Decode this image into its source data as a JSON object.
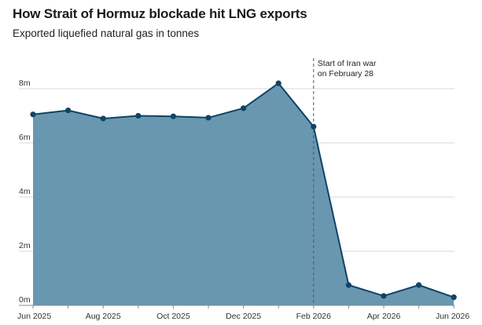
{
  "title": "How Strait of Hormuz blockade hit LNG exports",
  "subtitle": "Exported liquefied natural gas in tonnes",
  "colors": {
    "fill": "#6a97b0",
    "line": "#0e4466",
    "marker": "#0e4466",
    "grid": "#d9d9d9",
    "annotation_line": "#555555"
  },
  "chart_data": {
    "type": "area",
    "title": "How Strait of Hormuz blockade hit LNG exports",
    "subtitle": "Exported liquefied natural gas in tonnes",
    "xlabel": "",
    "ylabel": "",
    "x_tick_labels": [
      "Jun 2025",
      "Aug 2025",
      "Oct 2025",
      "Dec 2025",
      "Feb 2026",
      "Apr 2026",
      "Jun 2026"
    ],
    "y_tick_labels": [
      "0m",
      "2m",
      "4m",
      "6m",
      "8m"
    ],
    "ylim": [
      0,
      8
    ],
    "grid": true,
    "series": [
      {
        "x": [
          "2025-06",
          "2025-07",
          "2025-08",
          "2025-09",
          "2025-10",
          "2025-11",
          "2025-12",
          "2026-01",
          "2026-02",
          "2026-03",
          "2026-04",
          "2026-05",
          "2026-06"
        ],
        "values": [
          7.05,
          7.2,
          6.9,
          7.0,
          6.98,
          6.93,
          7.28,
          8.2,
          6.6,
          0.75,
          0.35,
          0.75,
          0.3
        ]
      }
    ],
    "annotations": [
      {
        "x": "2026-02",
        "text_lines": [
          "Start of Iran war",
          "on February 28"
        ]
      }
    ]
  }
}
